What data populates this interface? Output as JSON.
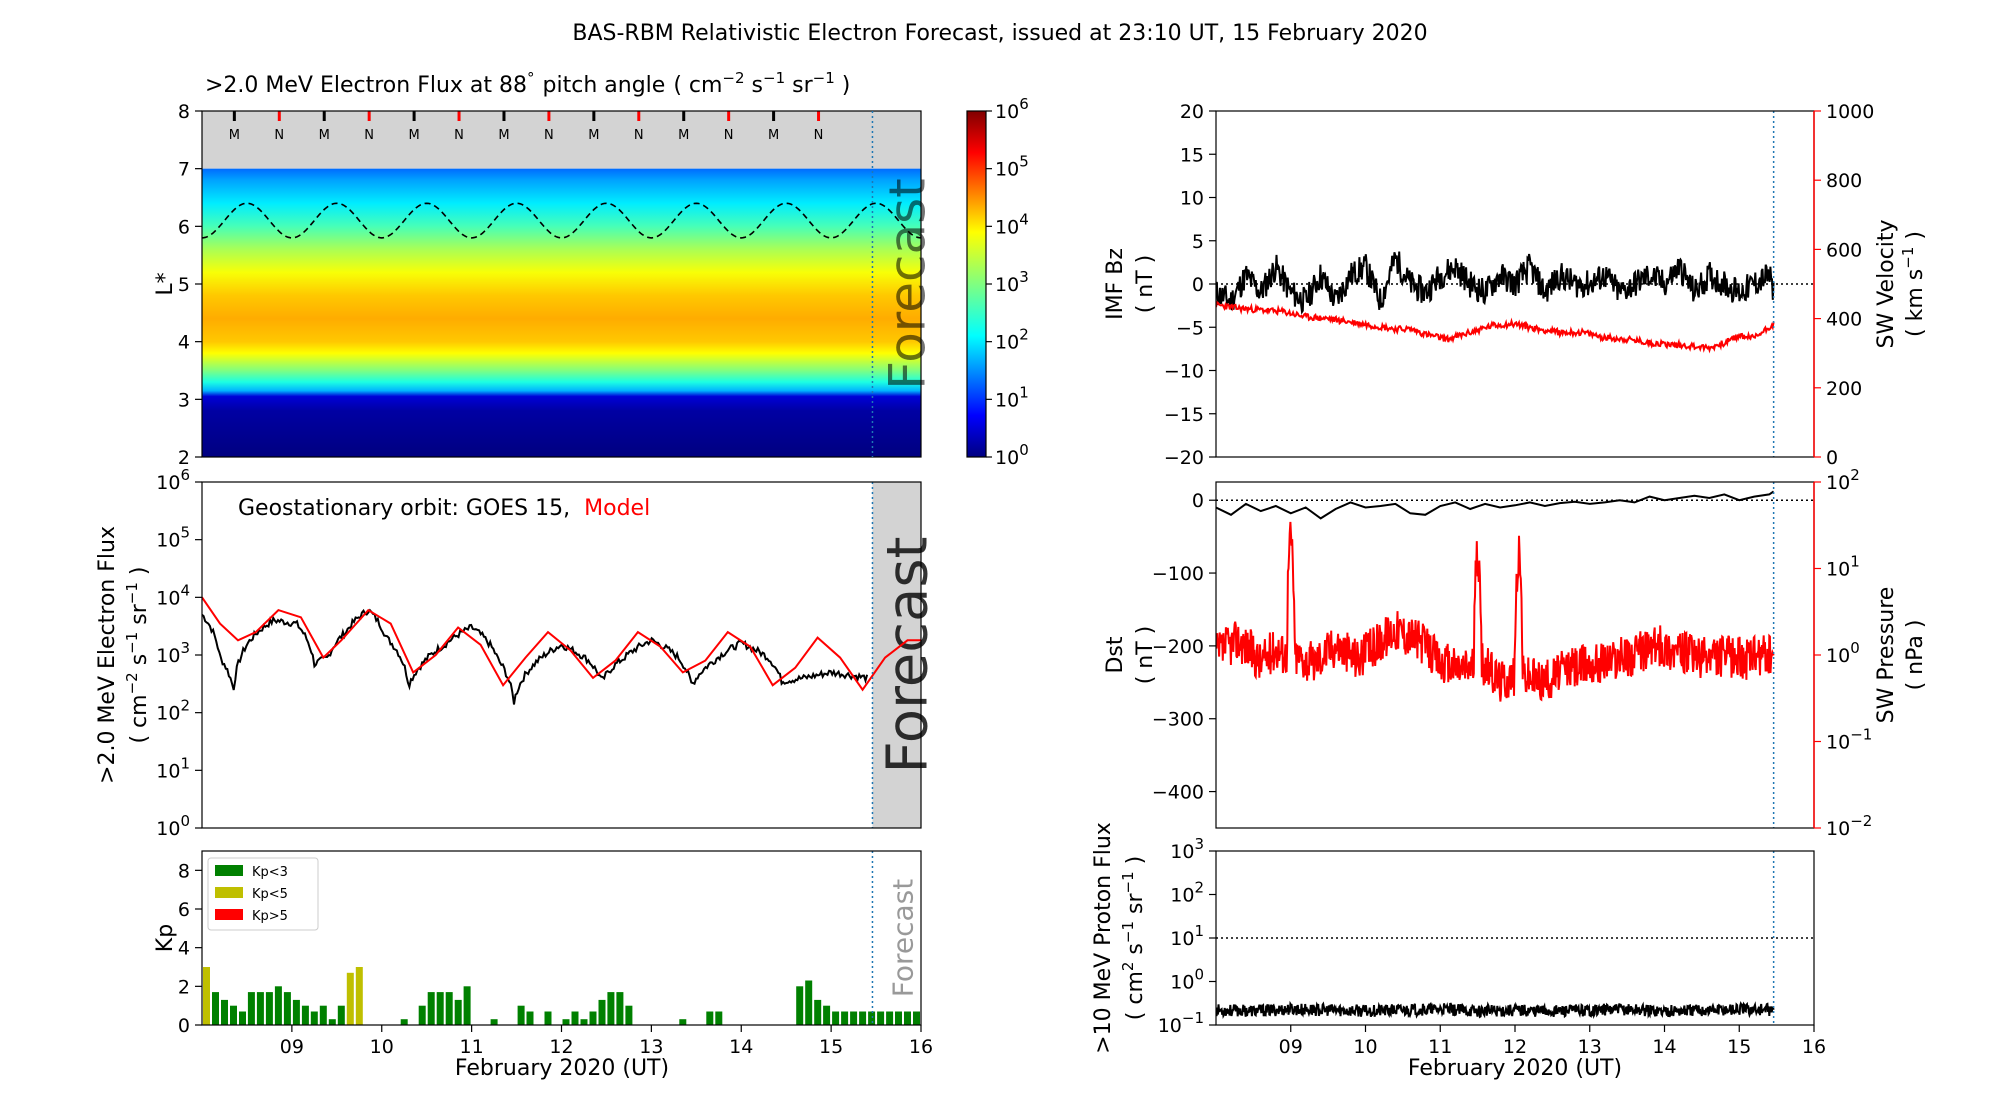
{
  "page": {
    "title": "BAS-RBM Relativistic Electron Forecast, issued at 23:10 UT, 15 February 2020"
  },
  "colors": {
    "black": "#000000",
    "red": "#ff0000",
    "forecast_shade": "#d3d3d3",
    "forecast_line": "#1f77b4",
    "kp_low": "#008000",
    "kp_mid": "#bfbf00",
    "kp_high": "#ff0000",
    "forecast_text": "#a9a9a9"
  },
  "shared": {
    "xlabel": "February 2020 (UT)",
    "x_ticks": [
      "09",
      "10",
      "11",
      "12",
      "13",
      "14",
      "15",
      "16"
    ],
    "x_range_days": [
      8.5,
      16.5
    ],
    "forecast_start_day": 15.96,
    "forecast_label": "Forecast"
  },
  "chart_data": [
    {
      "id": "lstar_flux",
      "type": "heatmap",
      "title_main": ">2.0 MeV Electron Flux at 88",
      "title_deg": "°",
      "title_pitch": "pitch angle",
      "title_units_parts": [
        "( cm",
        "−2",
        " s",
        "−1",
        " sr",
        "−1",
        " )"
      ],
      "ylabel": "L*",
      "yticks": [
        "2",
        "3",
        "4",
        "5",
        "6",
        "7",
        "8"
      ],
      "ylim": [
        2,
        8
      ],
      "colorbar": {
        "type": "log",
        "min_exp": 0,
        "max_exp": 6,
        "ticks": [
          {
            "base": "10",
            "exp": "0"
          },
          {
            "base": "10",
            "exp": "1"
          },
          {
            "base": "10",
            "exp": "2"
          },
          {
            "base": "10",
            "exp": "3"
          },
          {
            "base": "10",
            "exp": "4"
          },
          {
            "base": "10",
            "exp": "5"
          },
          {
            "base": "10",
            "exp": "6"
          }
        ]
      },
      "profile_by_L": {
        "L": [
          2.0,
          2.8,
          3.05,
          3.15,
          3.3,
          3.5,
          3.8,
          4.0,
          4.4,
          4.8,
          5.2,
          5.6,
          6.0,
          6.4,
          6.8,
          7.0
        ],
        "log10_flux": [
          0.0,
          0.2,
          0.5,
          1.7,
          2.3,
          3.0,
          3.9,
          4.2,
          4.35,
          4.2,
          3.85,
          3.3,
          2.6,
          2.0,
          1.6,
          1.3
        ]
      },
      "gray_region_L": [
        7.0,
        8.0
      ],
      "magnetopause_L": {
        "mean": 6.1,
        "amplitude": 0.3,
        "period_days": 1.0,
        "phase_day": 9.0
      },
      "mlt_markers": [
        "M",
        "N",
        "M",
        "N",
        "M",
        "N",
        "M",
        "N",
        "M",
        "N",
        "M",
        "N",
        "M",
        "N"
      ],
      "mlt_marker_days": [
        8.86,
        9.36,
        9.86,
        10.36,
        10.86,
        11.36,
        11.86,
        12.36,
        12.86,
        13.36,
        13.86,
        14.36,
        14.86,
        15.36
      ]
    },
    {
      "id": "geo_flux",
      "type": "line",
      "ylabel_lines": [
        ">2.0 MeV Electron Flux"
      ],
      "ylabel_units_parts": [
        "( cm",
        "−2",
        " s",
        "−1",
        " sr",
        "−1",
        " )"
      ],
      "yscale": "log",
      "ylim": [
        1,
        1000000
      ],
      "yticks": [
        {
          "base": "10",
          "exp": "0"
        },
        {
          "base": "10",
          "exp": "1"
        },
        {
          "base": "10",
          "exp": "2"
        },
        {
          "base": "10",
          "exp": "3"
        },
        {
          "base": "10",
          "exp": "4"
        },
        {
          "base": "10",
          "exp": "5"
        },
        {
          "base": "10",
          "exp": "6"
        }
      ],
      "annotation_prefix": "Geostationary orbit:   GOES 15,",
      "series": [
        {
          "name": "GOES 15",
          "color": "#000000",
          "x": [
            8.5,
            8.7,
            8.85,
            9.0,
            9.3,
            9.55,
            9.75,
            9.9,
            10.1,
            10.35,
            10.55,
            10.8,
            10.95,
            11.2,
            11.5,
            11.8,
            11.97,
            12.2,
            12.5,
            12.8,
            12.95,
            13.2,
            13.5,
            13.8,
            13.95,
            14.2,
            14.5,
            14.8,
            14.95,
            15.2,
            15.5,
            15.9
          ],
          "y": [
            5000,
            900,
            250,
            1500,
            4000,
            3500,
            700,
            900,
            2500,
            6000,
            2000,
            300,
            700,
            1500,
            3000,
            800,
            150,
            700,
            1500,
            800,
            350,
            900,
            1800,
            900,
            300,
            800,
            1600,
            900,
            350,
            400,
            500,
            400
          ]
        },
        {
          "name": "Model",
          "color": "#ff0000",
          "x": [
            8.5,
            8.7,
            8.9,
            9.1,
            9.35,
            9.6,
            9.85,
            10.05,
            10.35,
            10.6,
            10.85,
            11.1,
            11.35,
            11.6,
            11.85,
            12.1,
            12.35,
            12.6,
            12.85,
            13.1,
            13.35,
            13.6,
            13.85,
            14.1,
            14.35,
            14.6,
            14.85,
            15.1,
            15.35,
            15.6,
            15.85,
            16.1,
            16.35,
            16.5
          ],
          "y": [
            10000,
            3500,
            1800,
            2500,
            6000,
            4500,
            900,
            1800,
            6000,
            3500,
            500,
            1000,
            3000,
            1500,
            300,
            900,
            2500,
            1200,
            400,
            800,
            2500,
            1400,
            500,
            800,
            2500,
            1400,
            300,
            600,
            2000,
            900,
            250,
            900,
            1800,
            1800
          ]
        }
      ]
    },
    {
      "id": "kp",
      "type": "bar",
      "ylabel": "Kp",
      "ylim": [
        0,
        9
      ],
      "yticks": [
        "0",
        "2",
        "4",
        "6",
        "8"
      ],
      "legend": [
        {
          "label": "Kp<3",
          "color": "#008000"
        },
        {
          "label": "Kp<5",
          "color": "#bfbf00"
        },
        {
          "label": "Kp>5",
          "color": "#ff0000"
        }
      ],
      "bar_width_days": 0.1,
      "start_day": 8.5,
      "values": [
        3.0,
        1.7,
        1.3,
        1.0,
        0.7,
        1.7,
        1.7,
        1.7,
        2.0,
        1.7,
        1.3,
        1.0,
        0.7,
        1.0,
        0.3,
        1.0,
        2.7,
        3.0,
        0,
        0,
        0,
        0,
        0.3,
        0,
        1.0,
        1.7,
        1.7,
        1.7,
        1.3,
        2.0,
        0,
        0,
        0.3,
        0,
        0,
        1.0,
        0.7,
        0,
        0.7,
        0,
        0.3,
        0.7,
        0.3,
        0.7,
        1.3,
        1.7,
        1.7,
        1.0,
        0,
        0,
        0,
        0,
        0,
        0.3,
        0,
        0,
        0.7,
        0.7,
        0,
        0,
        0,
        0,
        0,
        0,
        0,
        0,
        2.0,
        2.3,
        1.3,
        1.0,
        0.7,
        0.7,
        0.7,
        0.7,
        0.7,
        0.7,
        0.7,
        0.7,
        0.7,
        0.7
      ]
    },
    {
      "id": "imf_sw",
      "type": "line",
      "ylabel_lines": [
        "IMF Bz",
        "( nT )"
      ],
      "ylim": [
        -20,
        20
      ],
      "yticks": [
        "−20",
        "−15",
        "−10",
        "−5",
        "0",
        "5",
        "10",
        "15",
        "20"
      ],
      "y2label_lines": [
        "SW Velocity"
      ],
      "y2label_units_parts": [
        "( km s",
        "−1",
        " )"
      ],
      "y2lim": [
        0,
        1000
      ],
      "y2ticks": [
        "0",
        "200",
        "400",
        "600",
        "800",
        "1000"
      ],
      "series": [
        {
          "name": "IMF Bz",
          "color": "#000000",
          "x": [
            8.5,
            8.7,
            8.9,
            9.1,
            9.3,
            9.5,
            9.7,
            9.9,
            10.1,
            10.3,
            10.5,
            10.7,
            10.9,
            11.1,
            11.3,
            11.5,
            11.7,
            11.9,
            12.1,
            12.3,
            12.5,
            12.7,
            12.9,
            13.1,
            13.3,
            13.5,
            13.7,
            13.9,
            14.1,
            14.3,
            14.5,
            14.7,
            14.9,
            15.1,
            15.3,
            15.5,
            15.7,
            15.9,
            15.96
          ],
          "y": [
            -1,
            -2,
            1,
            -1,
            2,
            -1,
            -2,
            1,
            -2,
            1,
            2,
            -2,
            3,
            0,
            -1,
            1,
            2,
            0,
            -1,
            1,
            0,
            2,
            -1,
            1,
            0,
            0,
            1,
            -1,
            0,
            1,
            0,
            2,
            -1,
            1,
            0,
            -1,
            0,
            1,
            -1
          ]
        },
        {
          "name": "SW Velocity",
          "color": "#ff0000",
          "x": [
            8.5,
            8.8,
            9.1,
            9.4,
            9.7,
            10.0,
            10.3,
            10.6,
            10.9,
            11.1,
            11.3,
            11.6,
            11.9,
            12.2,
            12.5,
            12.8,
            13.1,
            13.4,
            13.7,
            14.0,
            14.3,
            14.6,
            14.9,
            15.1,
            15.3,
            15.5,
            15.7,
            15.96
          ],
          "y": [
            440,
            430,
            425,
            420,
            405,
            400,
            390,
            380,
            370,
            370,
            355,
            340,
            360,
            380,
            385,
            370,
            360,
            360,
            345,
            340,
            330,
            325,
            320,
            315,
            330,
            350,
            345,
            385
          ]
        }
      ]
    },
    {
      "id": "dst_pressure",
      "type": "line",
      "ylabel_lines": [
        "Dst",
        "( nT )"
      ],
      "ylim": [
        -450,
        25
      ],
      "yticks": [
        "−400",
        "−300",
        "−200",
        "−100",
        "0"
      ],
      "ytick_values": [
        -400,
        -300,
        -200,
        -100,
        0
      ],
      "y2label_lines": [
        "SW Pressure",
        "( nPa )"
      ],
      "y2scale": "log",
      "y2lim": [
        0.01,
        100
      ],
      "y2ticks": [
        {
          "base": "10",
          "exp": "−2"
        },
        {
          "base": "10",
          "exp": "−1"
        },
        {
          "base": "10",
          "exp": "0"
        },
        {
          "base": "10",
          "exp": "1"
        },
        {
          "base": "10",
          "exp": "2"
        }
      ],
      "series": [
        {
          "name": "Dst",
          "color": "#000000",
          "x": [
            8.5,
            8.7,
            8.9,
            9.1,
            9.3,
            9.5,
            9.7,
            9.9,
            10.1,
            10.3,
            10.5,
            10.7,
            10.9,
            11.1,
            11.3,
            11.5,
            11.7,
            11.9,
            12.1,
            12.3,
            12.5,
            12.7,
            12.9,
            13.1,
            13.3,
            13.5,
            13.7,
            13.9,
            14.1,
            14.3,
            14.5,
            14.7,
            14.9,
            15.1,
            15.3,
            15.5,
            15.7,
            15.9,
            15.96
          ],
          "y": [
            -10,
            -20,
            -5,
            -15,
            -8,
            -18,
            -10,
            -25,
            -12,
            -3,
            -10,
            -8,
            -5,
            -18,
            -20,
            -8,
            -3,
            -12,
            -5,
            -10,
            -7,
            -3,
            -8,
            -4,
            -2,
            -5,
            -3,
            0,
            -3,
            5,
            0,
            3,
            6,
            3,
            8,
            0,
            5,
            8,
            12
          ]
        },
        {
          "name": "SW Pressure",
          "color": "#ff0000",
          "x": [
            8.5,
            8.8,
            9.1,
            9.3,
            9.45,
            9.5,
            9.55,
            9.8,
            10.1,
            10.4,
            10.6,
            10.9,
            11.2,
            11.5,
            11.8,
            11.95,
            12.0,
            12.05,
            12.3,
            12.5,
            12.55,
            12.6,
            12.9,
            13.2,
            13.5,
            13.8,
            14.1,
            14.4,
            14.7,
            15.0,
            15.3,
            15.6,
            15.96
          ],
          "y": [
            1.0,
            1.5,
            0.8,
            1.2,
            1.0,
            25.0,
            1.0,
            0.8,
            1.3,
            0.9,
            1.2,
            2.0,
            1.5,
            0.8,
            0.7,
            0.8,
            15.0,
            0.8,
            0.5,
            0.6,
            15.0,
            0.6,
            0.5,
            0.7,
            0.8,
            0.9,
            1.0,
            1.3,
            1.1,
            0.9,
            1.0,
            0.9,
            1.0
          ]
        }
      ]
    },
    {
      "id": "proton_flux",
      "type": "line",
      "ylabel_lines": [
        ">10 MeV Proton Flux"
      ],
      "ylabel_units_parts": [
        "( cm",
        "2",
        " s",
        "−1",
        " sr",
        "−1",
        " )"
      ],
      "yscale": "log",
      "ylim": [
        0.1,
        1000
      ],
      "yticks": [
        {
          "base": "10",
          "exp": "−1"
        },
        {
          "base": "10",
          "exp": "0"
        },
        {
          "base": "10",
          "exp": "1"
        },
        {
          "base": "10",
          "exp": "2"
        },
        {
          "base": "10",
          "exp": "3"
        }
      ],
      "threshold": 10,
      "series": [
        {
          "name": "Proton flux",
          "color": "#000000",
          "x": [
            8.5,
            9.0,
            9.5,
            10.0,
            10.5,
            11.0,
            11.5,
            12.0,
            12.5,
            13.0,
            13.5,
            14.0,
            14.5,
            15.0,
            15.5,
            15.96
          ],
          "y": [
            0.22,
            0.21,
            0.23,
            0.22,
            0.21,
            0.22,
            0.23,
            0.21,
            0.22,
            0.21,
            0.22,
            0.23,
            0.21,
            0.22,
            0.23,
            0.22
          ]
        }
      ]
    }
  ]
}
